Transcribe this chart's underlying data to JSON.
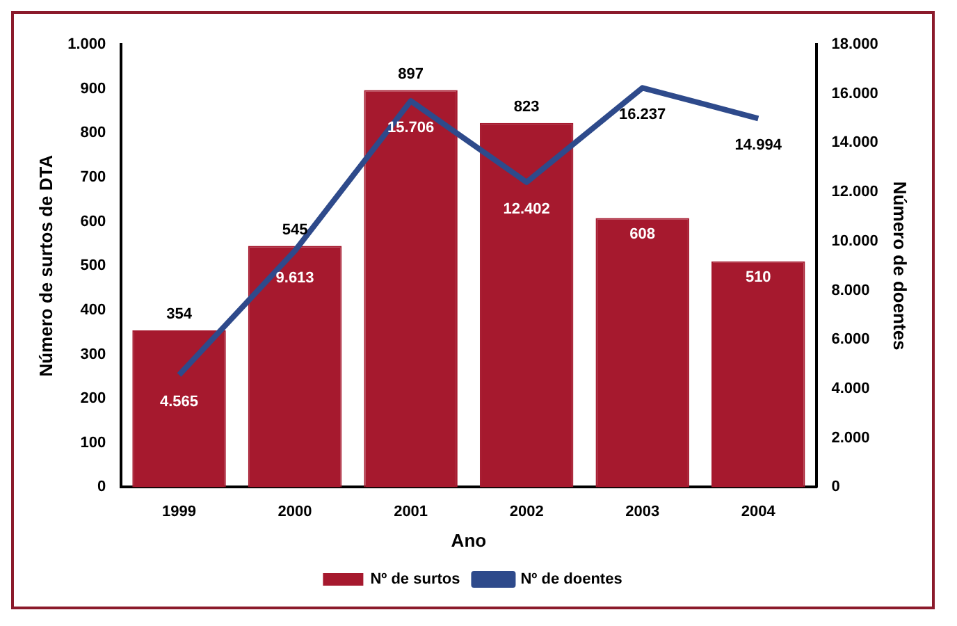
{
  "chart_data": {
    "type": "bar",
    "xlabel": "Ano",
    "ylabel": "Número de surtos de DTA",
    "y2label": "Número de doentes",
    "categories": [
      "1999",
      "2000",
      "2001",
      "2002",
      "2003",
      "2004"
    ],
    "series": [
      {
        "name": "Nº de surtos",
        "color": "#a6192e",
        "values": [
          354,
          545,
          897,
          823,
          608,
          510
        ],
        "value_labels": [
          "354",
          "545",
          "897",
          "823",
          "608",
          "510"
        ]
      },
      {
        "name": "Nº de doentes",
        "type": "line",
        "axis": "y2",
        "color": "#2e4a8b",
        "values": [
          4565,
          9613,
          15706,
          12402,
          16237,
          14994
        ],
        "value_labels": [
          "4.565",
          "9.613",
          "15.706",
          "12.402",
          "16.237",
          "14.994"
        ]
      }
    ],
    "ylim": [
      0,
      1000
    ],
    "yticks": [
      0,
      100,
      200,
      300,
      400,
      500,
      600,
      700,
      800,
      900,
      {
        "value": 1000,
        "label": "1.000"
      }
    ],
    "y2lim": [
      0,
      18000
    ],
    "y2ticks": [
      0,
      {
        "value": 2000,
        "label": "2.000"
      },
      {
        "value": 4000,
        "label": "4.000"
      },
      {
        "value": 6000,
        "label": "6.000"
      },
      {
        "value": 8000,
        "label": "8.000"
      },
      {
        "value": 10000,
        "label": "10.000"
      },
      {
        "value": 12000,
        "label": "12.000"
      },
      {
        "value": 14000,
        "label": "14.000"
      },
      {
        "value": 16000,
        "label": "16.000"
      },
      {
        "value": 18000,
        "label": "18.000"
      }
    ],
    "grid": false,
    "legend": "bottom",
    "marker": "none",
    "line_style": "solid"
  }
}
